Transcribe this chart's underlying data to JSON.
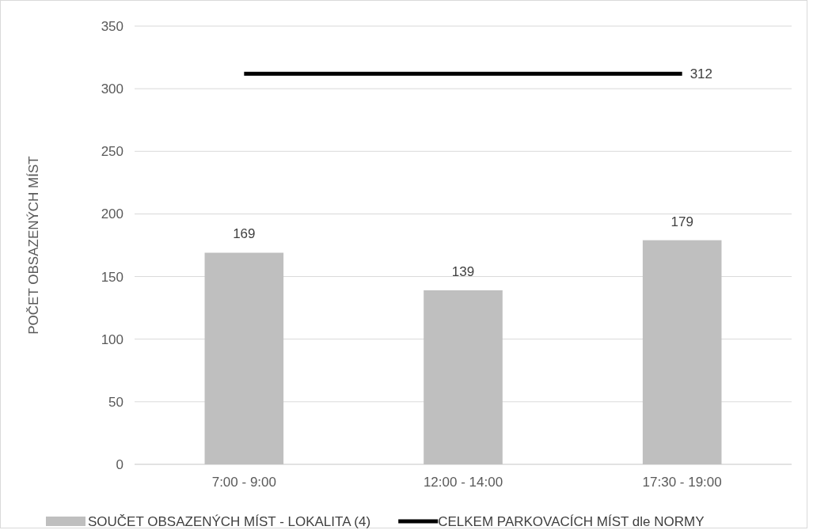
{
  "chart_data": {
    "type": "bar",
    "ylabel": "POČET OBSAZENÝCH MÍST",
    "categories": [
      "7:00 - 9:00",
      "12:00 - 14:00",
      "17:30 - 19:00"
    ],
    "series": [
      {
        "name": "SOUČET OBSAZENÝCH MÍST - LOKALITA (4)",
        "color": "#bfbfbf",
        "values": [
          169,
          139,
          179
        ],
        "value_labels": [
          "169",
          "139",
          "179"
        ]
      },
      {
        "name": "CELKEM PARKOVACÍCH MÍST dle NORMY",
        "type": "line",
        "color": "#000000",
        "values": [
          312,
          312,
          312
        ],
        "value_labels": [
          null,
          null,
          "312"
        ]
      }
    ],
    "ylim": [
      0,
      350
    ],
    "yticks": [
      0,
      50,
      100,
      150,
      200,
      250,
      300,
      350
    ],
    "grid": "y",
    "legend": "bottom",
    "marker": "none",
    "line_style": "solid"
  }
}
